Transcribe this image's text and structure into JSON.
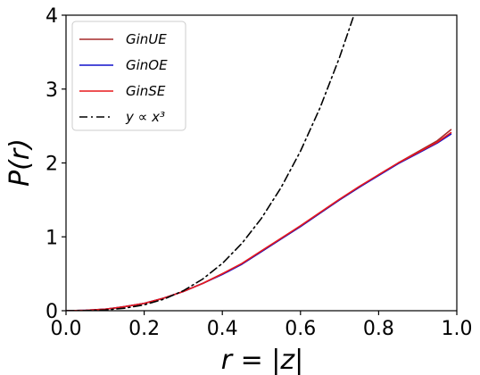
{
  "chart_data": {
    "type": "line",
    "xlabel": "r = |z|",
    "ylabel": "P(r)",
    "xlim": [
      0.0,
      1.0
    ],
    "ylim": [
      0,
      4
    ],
    "x_ticks": [
      "0.0",
      "0.2",
      "0.4",
      "0.6",
      "0.8",
      "1.0"
    ],
    "y_ticks": [
      "0",
      "1",
      "2",
      "3",
      "4"
    ],
    "grid": false,
    "legend_position": "top-left",
    "series": [
      {
        "name": "GinUE",
        "color": "#a52a2a",
        "style": "solid",
        "x": [
          0.0,
          0.05,
          0.1,
          0.15,
          0.2,
          0.25,
          0.3,
          0.35,
          0.4,
          0.45,
          0.5,
          0.55,
          0.6,
          0.65,
          0.7,
          0.75,
          0.8,
          0.85,
          0.9,
          0.95,
          0.985
        ],
        "y": [
          0.0,
          0.005,
          0.02,
          0.055,
          0.1,
          0.17,
          0.26,
          0.37,
          0.5,
          0.63,
          0.8,
          0.97,
          1.14,
          1.32,
          1.5,
          1.67,
          1.84,
          2.0,
          2.15,
          2.3,
          2.45
        ]
      },
      {
        "name": "GinOE",
        "color": "#1010cc",
        "style": "solid",
        "x": [
          0.0,
          0.05,
          0.1,
          0.15,
          0.2,
          0.25,
          0.3,
          0.35,
          0.4,
          0.45,
          0.5,
          0.55,
          0.6,
          0.65,
          0.7,
          0.75,
          0.8,
          0.85,
          0.9,
          0.95,
          0.985
        ],
        "y": [
          0.0,
          0.005,
          0.02,
          0.055,
          0.1,
          0.17,
          0.26,
          0.37,
          0.49,
          0.63,
          0.8,
          0.97,
          1.14,
          1.32,
          1.5,
          1.67,
          1.83,
          1.99,
          2.13,
          2.27,
          2.39
        ]
      },
      {
        "name": "GinSE",
        "color": "#e8191c",
        "style": "solid",
        "x": [
          0.0,
          0.05,
          0.1,
          0.15,
          0.2,
          0.25,
          0.3,
          0.35,
          0.4,
          0.45,
          0.5,
          0.55,
          0.6,
          0.65,
          0.7,
          0.75,
          0.8,
          0.85,
          0.9,
          0.95,
          0.985
        ],
        "y": [
          0.0,
          0.005,
          0.02,
          0.055,
          0.1,
          0.17,
          0.26,
          0.37,
          0.5,
          0.64,
          0.81,
          0.98,
          1.15,
          1.33,
          1.51,
          1.68,
          1.84,
          2.0,
          2.14,
          2.28,
          2.41
        ]
      },
      {
        "name": "y ∝ x³",
        "color": "#000000",
        "style": "dashdot",
        "x": [
          0.0,
          0.05,
          0.1,
          0.15,
          0.2,
          0.25,
          0.3,
          0.35,
          0.4,
          0.45,
          0.5,
          0.55,
          0.6,
          0.65,
          0.7,
          0.74
        ],
        "y": [
          0.0,
          0.0012,
          0.01,
          0.034,
          0.08,
          0.156,
          0.27,
          0.429,
          0.64,
          0.911,
          1.25,
          1.664,
          2.16,
          2.746,
          3.43,
          4.05
        ]
      }
    ]
  }
}
